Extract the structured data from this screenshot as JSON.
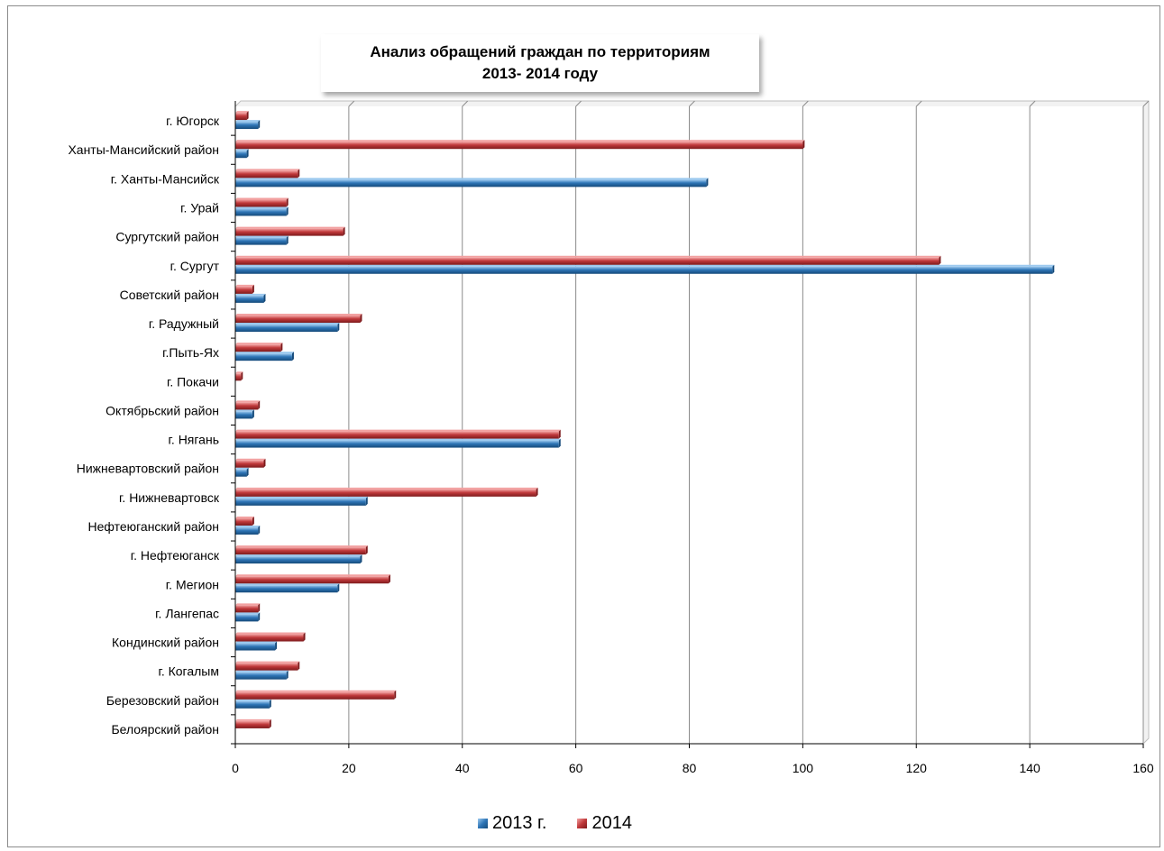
{
  "chart_data": {
    "type": "bar",
    "orientation": "horizontal",
    "title": "Анализ обращений граждан по территориям",
    "subtitle": "2013- 2014 году",
    "categories": [
      "Белоярский  район",
      "Березовский район",
      "г. Когалым",
      "Кондинский район",
      "г. Лангепас",
      "г. Мегион",
      "г. Нефтеюганск",
      "Нефтеюганский район",
      "г. Нижневартовск",
      "Нижневартовский район",
      "г. Нягань",
      "Октябрьский район",
      "г. Покачи",
      "г.Пыть-Ях",
      "г. Радужный",
      "Советский район",
      "г. Сургут",
      "Сургутский район",
      "г. Урай",
      "г. Ханты-Мансийск",
      "Ханты-Мансийский район",
      "г. Югорск"
    ],
    "series": [
      {
        "name": "2013 г.",
        "color": "#2e75b6",
        "values": [
          0,
          6,
          9,
          7,
          4,
          18,
          22,
          4,
          23,
          2,
          57,
          3,
          0,
          10,
          18,
          5,
          144,
          9,
          9,
          83,
          2,
          4
        ]
      },
      {
        "name": "2014",
        "color": "#c0393b",
        "values": [
          6,
          28,
          11,
          12,
          4,
          27,
          23,
          3,
          53,
          5,
          57,
          4,
          1,
          8,
          22,
          3,
          124,
          19,
          9,
          11,
          100,
          2
        ]
      }
    ],
    "xlim": [
      0,
      160
    ],
    "xticks": [
      0,
      20,
      40,
      60,
      80,
      100,
      120,
      140,
      160
    ],
    "grid": true,
    "legend_position": "bottom"
  }
}
